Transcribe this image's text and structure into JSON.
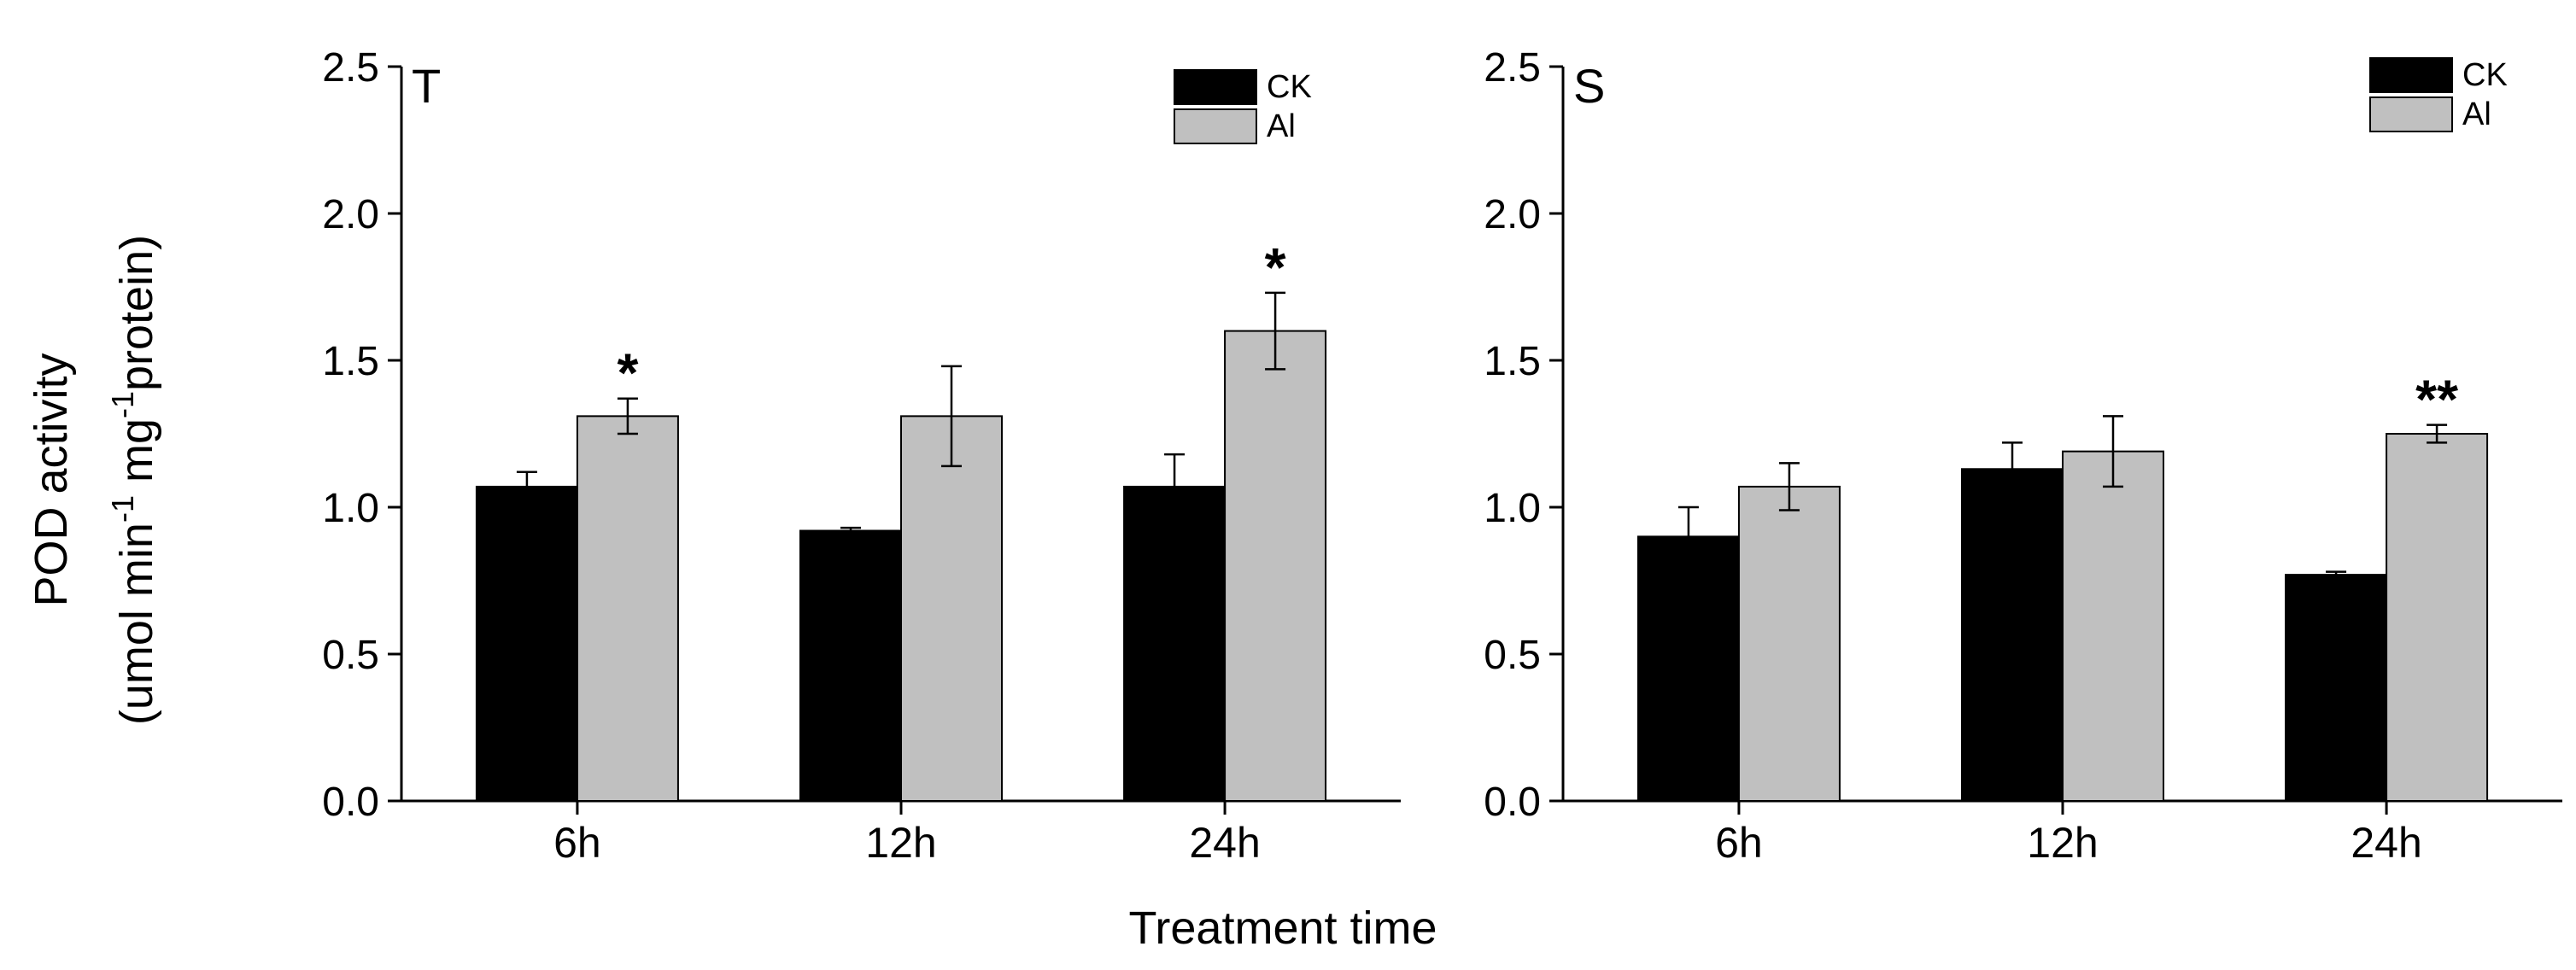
{
  "chart_data": [
    {
      "type": "bar",
      "panel_label": "T",
      "categories": [
        "6h",
        "12h",
        "24h"
      ],
      "series": [
        {
          "name": "CK",
          "color": "#000000",
          "values": [
            1.07,
            0.92,
            1.07
          ],
          "errors": [
            0.05,
            0.01,
            0.11
          ]
        },
        {
          "name": "Al",
          "color": "#c0c0c0",
          "values": [
            1.31,
            1.31,
            1.6
          ],
          "errors": [
            0.06,
            0.17,
            0.13
          ]
        }
      ],
      "significance": [
        "*",
        "",
        "*"
      ],
      "ylim": [
        0,
        2.5
      ],
      "yticks": [
        "0.0",
        "0.5",
        "1.0",
        "1.5",
        "2.0",
        "2.5"
      ],
      "ylabel": "POD activity",
      "ylabel_units": "(umol min-1 mg-1protein)",
      "ylabel_units_parts": {
        "a": "(umol min",
        "b": " mg",
        "c": "protein)",
        "exp": "-1"
      },
      "legend": "top-right"
    },
    {
      "type": "bar",
      "panel_label": "S",
      "categories": [
        "6h",
        "12h",
        "24h"
      ],
      "series": [
        {
          "name": "CK",
          "color": "#000000",
          "values": [
            0.9,
            1.13,
            0.77
          ],
          "errors": [
            0.1,
            0.09,
            0.01
          ]
        },
        {
          "name": "Al",
          "color": "#c0c0c0",
          "values": [
            1.07,
            1.19,
            1.25
          ],
          "errors": [
            0.08,
            0.12,
            0.03
          ]
        }
      ],
      "significance": [
        "",
        "",
        "**"
      ],
      "ylim": [
        0,
        2.5
      ],
      "yticks": [
        "0.0",
        "0.5",
        "1.0",
        "1.5",
        "2.0",
        "2.5"
      ],
      "legend": "top-right"
    }
  ],
  "xlabel": "Treatment time"
}
